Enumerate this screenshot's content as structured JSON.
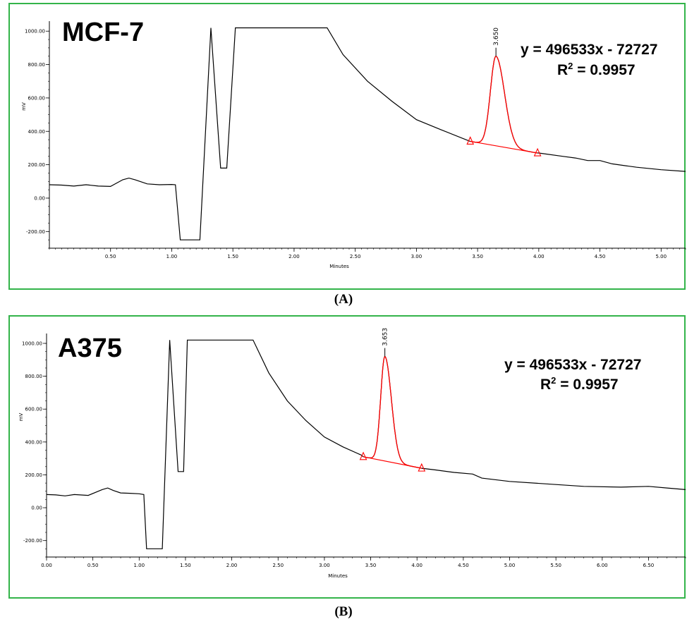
{
  "panels": {
    "A": {
      "caption": "(A)",
      "sample_label": "MCF-7",
      "equation": "y = 496533x - 72727",
      "r_squared_prefix": "R",
      "r_squared_sup": "2",
      "r_squared_value": " = 0.9957",
      "peak_label": "3.650"
    },
    "B": {
      "caption": "(B)",
      "sample_label": "A375",
      "equation": "y = 496533x - 72727",
      "r_squared_prefix": "R",
      "r_squared_sup": "2",
      "r_squared_value": " = 0.9957",
      "peak_label": "3.653"
    }
  },
  "colors": {
    "trace": "#000000",
    "integration": "#ff0000",
    "frame": "#33b44a"
  },
  "chart_data": [
    {
      "type": "line",
      "xlabel": "Minutes",
      "ylabel": "mV",
      "xlim": [
        0.0,
        5.2
      ],
      "ylim": [
        -300,
        1060
      ],
      "xticks": [
        0.5,
        1.0,
        1.5,
        2.0,
        2.5,
        3.0,
        3.5,
        4.0,
        4.5,
        5.0
      ],
      "xtick_labels": [
        "0.50",
        "1.00",
        "1.50",
        "2.00",
        "2.50",
        "3.00",
        "3.50",
        "4.00",
        "4.50",
        "5.00"
      ],
      "yticks": [
        -200,
        0,
        200,
        400,
        600,
        800,
        1000
      ],
      "ytick_labels": [
        "-200.00",
        "0.00",
        "200.00",
        "400.00",
        "600.00",
        "800.00",
        "1000.00"
      ],
      "trace": [
        [
          0.0,
          80
        ],
        [
          0.1,
          78
        ],
        [
          0.2,
          72
        ],
        [
          0.3,
          80
        ],
        [
          0.4,
          72
        ],
        [
          0.5,
          70
        ],
        [
          0.6,
          110
        ],
        [
          0.65,
          120
        ],
        [
          0.7,
          110
        ],
        [
          0.8,
          85
        ],
        [
          0.9,
          80
        ],
        [
          1.0,
          82
        ],
        [
          1.03,
          80
        ],
        [
          1.07,
          -250
        ],
        [
          1.1,
          -250
        ],
        [
          1.23,
          -250
        ],
        [
          1.32,
          1020
        ],
        [
          1.4,
          180
        ],
        [
          1.45,
          180
        ],
        [
          1.52,
          1020
        ],
        [
          2.0,
          1020
        ],
        [
          2.27,
          1020
        ],
        [
          2.4,
          860
        ],
        [
          2.6,
          700
        ],
        [
          2.8,
          580
        ],
        [
          3.0,
          470
        ],
        [
          3.2,
          410
        ],
        [
          3.45,
          350
        ],
        [
          3.6,
          320
        ],
        [
          3.8,
          300
        ],
        [
          4.0,
          270
        ],
        [
          4.2,
          250
        ],
        [
          4.3,
          240
        ],
        [
          4.4,
          225
        ],
        [
          4.5,
          225
        ],
        [
          4.6,
          205
        ],
        [
          4.8,
          185
        ],
        [
          5.0,
          170
        ],
        [
          5.2,
          160
        ]
      ],
      "peak": {
        "retention_time": 3.65,
        "height": 850,
        "start": [
          3.44,
          340
        ],
        "end": [
          3.99,
          270
        ]
      }
    },
    {
      "type": "line",
      "xlabel": "Minutes",
      "ylabel": "mV",
      "xlim": [
        0.0,
        6.9
      ],
      "ylim": [
        -300,
        1060
      ],
      "xticks": [
        0.0,
        0.5,
        1.0,
        1.5,
        2.0,
        2.5,
        3.0,
        3.5,
        4.0,
        4.5,
        5.0,
        5.5,
        6.0,
        6.5
      ],
      "xtick_labels": [
        "0.00",
        "0.50",
        "1.00",
        "1.50",
        "2.00",
        "2.50",
        "3.00",
        "3.50",
        "4.00",
        "4.50",
        "5.00",
        "5.50",
        "6.00",
        "6.50"
      ],
      "yticks": [
        -200,
        0,
        200,
        400,
        600,
        800,
        1000
      ],
      "ytick_labels": [
        "-200.00",
        "0.00",
        "200.00",
        "400.00",
        "600.00",
        "800.00",
        "1000.00"
      ],
      "trace": [
        [
          0.0,
          80
        ],
        [
          0.1,
          78
        ],
        [
          0.2,
          72
        ],
        [
          0.3,
          80
        ],
        [
          0.45,
          75
        ],
        [
          0.6,
          110
        ],
        [
          0.66,
          120
        ],
        [
          0.72,
          105
        ],
        [
          0.8,
          90
        ],
        [
          0.9,
          88
        ],
        [
          1.0,
          85
        ],
        [
          1.05,
          80
        ],
        [
          1.08,
          -250
        ],
        [
          1.12,
          -250
        ],
        [
          1.25,
          -250
        ],
        [
          1.33,
          1020
        ],
        [
          1.42,
          220
        ],
        [
          1.48,
          220
        ],
        [
          1.52,
          1020
        ],
        [
          2.0,
          1020
        ],
        [
          2.23,
          1020
        ],
        [
          2.4,
          820
        ],
        [
          2.6,
          650
        ],
        [
          2.8,
          530
        ],
        [
          3.0,
          430
        ],
        [
          3.2,
          370
        ],
        [
          3.4,
          320
        ],
        [
          3.6,
          290
        ],
        [
          3.8,
          270
        ],
        [
          4.0,
          250
        ],
        [
          4.2,
          230
        ],
        [
          4.4,
          215
        ],
        [
          4.6,
          205
        ],
        [
          4.7,
          180
        ],
        [
          5.0,
          160
        ],
        [
          5.4,
          145
        ],
        [
          5.8,
          130
        ],
        [
          6.2,
          125
        ],
        [
          6.5,
          130
        ],
        [
          6.7,
          120
        ],
        [
          6.9,
          110
        ]
      ],
      "peak": {
        "retention_time": 3.653,
        "height": 920,
        "start": [
          3.42,
          310
        ],
        "end": [
          4.05,
          240
        ]
      }
    }
  ]
}
